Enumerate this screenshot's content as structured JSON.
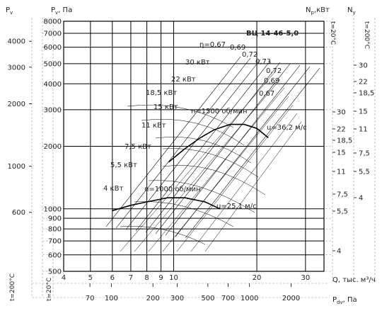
{
  "chart_data": {
    "type": "line",
    "title": "ВЦ 14-46-5,0",
    "xlabel": "Q, тыс. м³/ч",
    "x_scale": "log",
    "y_scale": "log",
    "xlim": [
      4,
      35
    ],
    "ylim": [
      500,
      8000
    ],
    "x_ticks": [
      4,
      5,
      6,
      7,
      8,
      9,
      10,
      20,
      30
    ],
    "y_ticks": [
      500,
      600,
      700,
      800,
      900,
      1000,
      2000,
      3000,
      4000,
      5000,
      6000,
      7000,
      8000
    ],
    "grid": true,
    "axis_labels": {
      "pv": "P<sub>v</sub>",
      "pv_pa": "P<sub>v</sub>, Па",
      "np_kw": "N<sub>р</sub>,кВт",
      "ny": "N<sub>у</sub>",
      "t20_left": "t=20°C",
      "t200_left": "t=200°C",
      "t20_right": "t=20°C",
      "t200_right": "t=200°C",
      "pdv": "P<sub>dv</sub>, Па"
    },
    "pv_200_ticks": [
      600,
      1000,
      2000,
      3000,
      4000
    ],
    "pdv_ticks": [
      70,
      100,
      200,
      300,
      500,
      700,
      1000,
      2000
    ],
    "np_ticks": [
      4,
      5.5,
      7.5,
      11,
      15,
      18.5,
      22,
      30
    ],
    "ny_ticks": [
      4,
      5.5,
      7.5,
      11,
      15,
      18.5,
      22,
      30
    ],
    "motor_labels": [
      "30 кВт",
      "22 кВт",
      "18,5 кВт",
      "15 кВт",
      "11 кВт",
      "7,5 кВт",
      "5,5 кВт",
      "4 кВт"
    ],
    "efficiency_labels": [
      "η=0,67",
      "0,69",
      "0,72",
      "0,73",
      "0,72",
      "0,69",
      "0,67"
    ],
    "series": [
      {
        "name": "n=1500 об/мин",
        "x": [
          9.6,
          11,
          12.5,
          14,
          16,
          18,
          20,
          22
        ],
        "y": [
          1680,
          1950,
          2200,
          2400,
          2550,
          2550,
          2440,
          2200
        ]
      },
      {
        "name": "n=1000 об/мин",
        "x": [
          6,
          7,
          8,
          9.5,
          11,
          13,
          14.7
        ],
        "y": [
          980,
          1040,
          1080,
          1130,
          1130,
          1080,
          1000
        ]
      }
    ],
    "speed_labels": [
      "u=36,2 м/с",
      "u=25,1 м/с"
    ]
  }
}
